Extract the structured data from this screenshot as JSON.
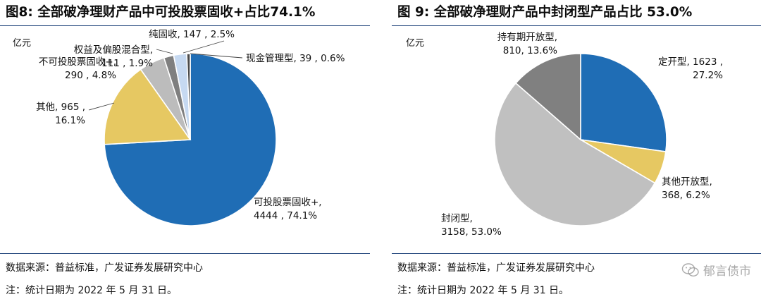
{
  "left": {
    "title": "图8: 全部破净理财产品中可投股票固收+占比74.1%",
    "source": "数据来源：普益标准，广发证券发展研究中心",
    "note": "注：统计日期为 2022 年 5 月 31 日。"
  },
  "right": {
    "title": "图 9: 全部破净理财产品中封闭型产品占比 53.0%",
    "source": "数据来源：普益标准，广发证券发展研究中心",
    "note": "注：统计日期为 2022 年 5 月 31 日。"
  },
  "watermark": {
    "icon": "wechat-icon",
    "text": "郁言债市"
  },
  "chart_data": [
    {
      "type": "pie",
      "unit_label": "亿元",
      "start": "12 o'clock, clockwise",
      "slices": [
        {
          "name": "可投股票固收+",
          "value": 4444,
          "percent": "74.1%",
          "color": "#1f6db5",
          "label_lines": [
            "可投股票固收+,",
            "4444 , 74.1%"
          ]
        },
        {
          "name": "其他",
          "value": 965,
          "percent": "16.1%",
          "color": "#e6c862",
          "label_lines": [
            "其他, 965 ,",
            "16.1%"
          ]
        },
        {
          "name": "不可投股票固收+",
          "value": 290,
          "percent": "4.8%",
          "color": "#bcbcbc",
          "label_lines": [
            "不可投股票固收+,",
            "290 , 4.8%"
          ]
        },
        {
          "name": "权益及偏股混合型",
          "value": 111,
          "percent": "1.9%",
          "color": "#7f7f7f",
          "label_lines": [
            "权益及偏股混合型,",
            "111 , 1.9%"
          ]
        },
        {
          "name": "纯固收",
          "value": 147,
          "percent": "2.5%",
          "color": "#c6d9f1",
          "label_lines": [
            "纯固收, 147 , 2.5%"
          ]
        },
        {
          "name": "现金管理型",
          "value": 39,
          "percent": "0.6%",
          "color": "#4a4a4a",
          "label_lines": [
            "现金管理型, 39 , 0.6%"
          ]
        }
      ]
    },
    {
      "type": "pie",
      "unit_label": "亿元",
      "start": "12 o'clock, clockwise",
      "slices": [
        {
          "name": "定开型",
          "value": 1623,
          "percent": "27.2%",
          "color": "#1f6db5",
          "label_lines": [
            "定开型, 1623 ,",
            "27.2%"
          ]
        },
        {
          "name": "其他开放型",
          "value": 368,
          "percent": "6.2%",
          "color": "#e6c862",
          "label_lines": [
            "其他开放型,",
            "368, 6.2%"
          ]
        },
        {
          "name": "封闭型",
          "value": 3158,
          "percent": "53.0%",
          "color": "#c0c0c0",
          "label_lines": [
            "封闭型,",
            "3158, 53.0%"
          ]
        },
        {
          "name": "持有期开放型",
          "value": 810,
          "percent": "13.6%",
          "color": "#808080",
          "label_lines": [
            "持有期开放型,",
            "810, 13.6%"
          ]
        }
      ]
    }
  ]
}
